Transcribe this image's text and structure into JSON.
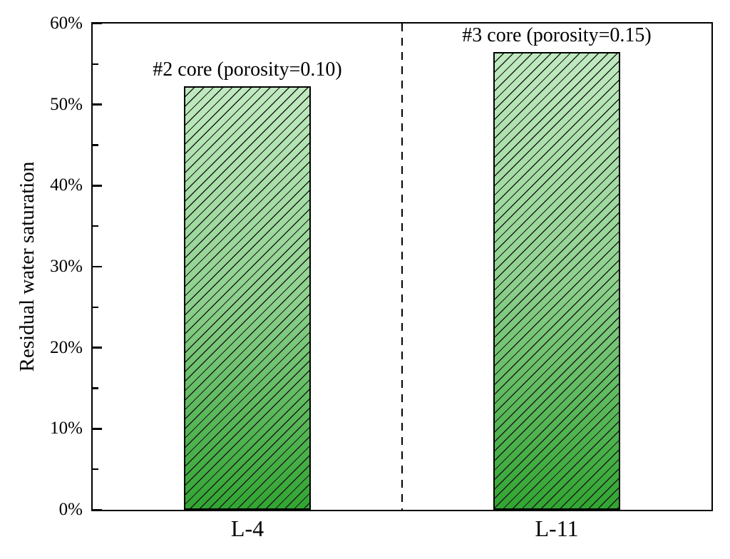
{
  "chart_data": {
    "type": "bar",
    "title": "",
    "xlabel": "",
    "ylabel": "Residual water saturation",
    "ylim": [
      0,
      60
    ],
    "grid": false,
    "legend": false,
    "categories": [
      "L-4",
      "L-11"
    ],
    "values": [
      52.3,
      56.5
    ],
    "annotations": [
      "#2 core (porosity=0.10)",
      "#3 core (porosity=0.15)"
    ],
    "yticks_major": [
      {
        "value": 60,
        "label": "60%"
      },
      {
        "value": 50,
        "label": "50%"
      },
      {
        "value": 40,
        "label": "40%"
      },
      {
        "value": 30,
        "label": "30%"
      },
      {
        "value": 20,
        "label": "20%"
      },
      {
        "value": 10,
        "label": "10%"
      },
      {
        "value": 0,
        "label": "0%"
      }
    ],
    "yticks_minor": [
      55,
      45,
      35,
      25,
      15,
      5
    ],
    "separator": {
      "orientation": "vertical",
      "position_fraction": 0.5,
      "style": "dashed"
    },
    "colors": {
      "background": "#ffffff",
      "axis": "#000000",
      "bar_border": "#000000",
      "hatch_line": "#1c1c1c",
      "bar_gradient_top": "#c0eac0",
      "bar_gradient_mid": "#8ed18e",
      "bar_gradient_bottom": "#31a531"
    }
  }
}
